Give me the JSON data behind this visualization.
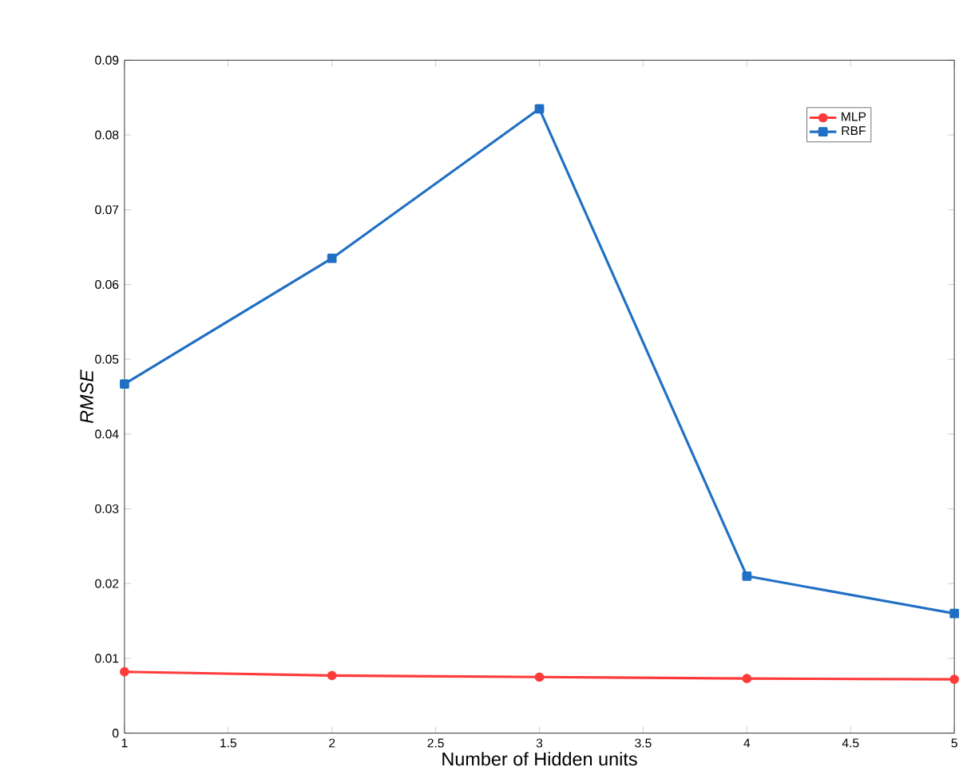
{
  "chart_data": {
    "type": "line",
    "xlabel": "Number of Hidden units",
    "ylabel": "RMSE",
    "x": [
      1,
      2,
      3,
      4,
      5
    ],
    "series": [
      {
        "name": "MLP",
        "color": "#ff3b3b",
        "marker": "circle",
        "values": [
          0.0082,
          0.0077,
          0.0075,
          0.0073,
          0.0072
        ]
      },
      {
        "name": "RBF",
        "color": "#1f6fc4",
        "marker": "square",
        "values": [
          0.0467,
          0.0635,
          0.0835,
          0.021,
          0.016
        ]
      }
    ],
    "xlim": [
      1,
      5
    ],
    "ylim": [
      0,
      0.09
    ],
    "xticks": [
      1,
      1.5,
      2,
      2.5,
      3,
      3.5,
      4,
      4.5,
      5
    ],
    "yticks": [
      0,
      0.01,
      0.02,
      0.03,
      0.04,
      0.05,
      0.06,
      0.07,
      0.08,
      0.09
    ],
    "legend": "top right",
    "grid": false,
    "line_style": "solid"
  }
}
